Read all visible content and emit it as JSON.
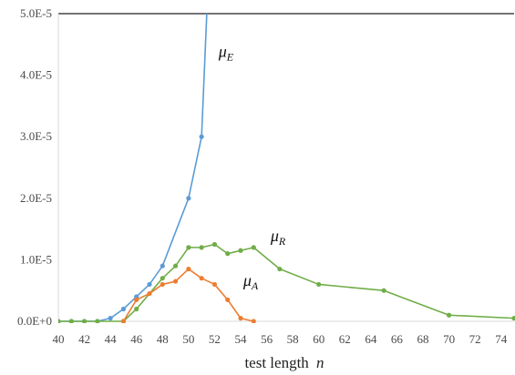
{
  "chart_data": {
    "type": "line",
    "title": "",
    "xlabel": "test length",
    "xlabel_var": "n",
    "ylabel": "",
    "xlim": [
      40,
      75
    ],
    "ylim": [
      0,
      5e-05
    ],
    "x_ticks": [
      40,
      42,
      44,
      46,
      48,
      50,
      52,
      54,
      56,
      58,
      60,
      62,
      64,
      66,
      68,
      70,
      72,
      74
    ],
    "x_tick_labels": [
      "40",
      "42",
      "44",
      "46",
      "48",
      "50",
      "52",
      "54",
      "56",
      "58",
      "60",
      "62",
      "64",
      "66",
      "68",
      "70",
      "72",
      "74"
    ],
    "y_ticks": [
      0,
      1e-05,
      2e-05,
      3e-05,
      4e-05,
      5e-05
    ],
    "y_tick_labels": [
      "0.0E+0",
      "1.0E-5",
      "2.0E-5",
      "3.0E-5",
      "4.0E-5",
      "5.0E-5"
    ],
    "grid": false,
    "series": [
      {
        "name": "μ_E",
        "label_main": "μ",
        "label_sub": "E",
        "color": "#5b9bd5",
        "points": [
          [
            40,
            0
          ],
          [
            41,
            0
          ],
          [
            42,
            0
          ],
          [
            43,
            0
          ],
          [
            44,
            5e-07
          ],
          [
            45,
            2e-06
          ],
          [
            46,
            4e-06
          ],
          [
            47,
            6e-06
          ],
          [
            48,
            9e-06
          ],
          [
            50,
            2e-05
          ],
          [
            51,
            3e-05
          ],
          [
            51.5,
            5.5e-05
          ]
        ],
        "markers": [
          [
            40,
            0
          ],
          [
            41,
            0
          ],
          [
            42,
            0
          ],
          [
            43,
            0
          ],
          [
            44,
            5e-07
          ],
          [
            45,
            2e-06
          ],
          [
            46,
            4e-06
          ],
          [
            47,
            6e-06
          ],
          [
            48,
            9e-06
          ],
          [
            50,
            2e-05
          ],
          [
            51,
            3e-05
          ]
        ]
      },
      {
        "name": "μ_R",
        "label_main": "μ",
        "label_sub": "R",
        "color": "#70ad47",
        "points": [
          [
            40,
            0
          ],
          [
            41,
            0
          ],
          [
            42,
            0
          ],
          [
            43,
            0
          ],
          [
            45,
            0
          ],
          [
            46,
            2e-06
          ],
          [
            48,
            7e-06
          ],
          [
            49,
            9e-06
          ],
          [
            50,
            1.2e-05
          ],
          [
            51,
            1.2e-05
          ],
          [
            52,
            1.25e-05
          ],
          [
            53,
            1.1e-05
          ],
          [
            54,
            1.15e-05
          ],
          [
            55,
            1.2e-05
          ],
          [
            57,
            8.5e-06
          ],
          [
            60,
            6e-06
          ],
          [
            65,
            5e-06
          ],
          [
            70,
            1e-06
          ],
          [
            75,
            5e-07
          ]
        ]
      },
      {
        "name": "μ_A",
        "label_main": "μ",
        "label_sub": "A",
        "color": "#ed7d31",
        "points": [
          [
            45,
            0
          ],
          [
            46,
            3.5e-06
          ],
          [
            47,
            4.5e-06
          ],
          [
            48,
            6e-06
          ],
          [
            49,
            6.5e-06
          ],
          [
            50,
            8.5e-06
          ],
          [
            51,
            7e-06
          ],
          [
            52,
            6e-06
          ],
          [
            53,
            3.5e-06
          ],
          [
            54,
            5e-07
          ],
          [
            55,
            0
          ]
        ]
      }
    ]
  }
}
